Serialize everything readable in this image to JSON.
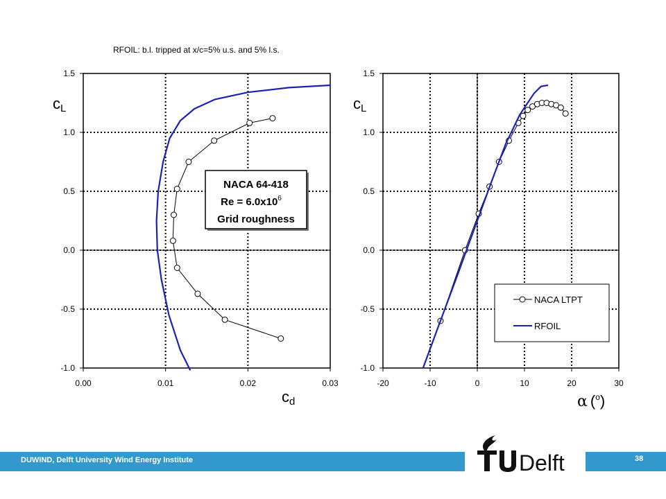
{
  "slide": {
    "header": "RFOIL: b.l. tripped at x/c=5% u.s. and 5% l.s.",
    "footer": "DUWIND, Delft University Wind Energy Institute",
    "page_number": "38",
    "logo_text": "TUDelft",
    "accent_color": "#3399cc",
    "logo_color": "#111111"
  },
  "chart_data": [
    {
      "type": "line",
      "ylabel_main": "c",
      "ylabel_sub": "L",
      "xlabel_main": "c",
      "xlabel_sub": "d",
      "xlim": [
        0.0,
        0.03
      ],
      "ylim": [
        -1.0,
        1.5
      ],
      "xticks": [
        "0.00",
        "0.01",
        "0.02",
        "0.03"
      ],
      "yticks": [
        "-1.0",
        "-0.5",
        "0.0",
        "0.5",
        "1.0",
        "1.5"
      ],
      "xtick_values": [
        0.0,
        0.01,
        0.02,
        0.03
      ],
      "ytick_values": [
        -1.0,
        -0.5,
        0.0,
        0.5,
        1.0,
        1.5
      ],
      "grid": "dotted at major ticks",
      "annotation": {
        "line1": "NACA 64-418",
        "line2": "Re = 6.0x10",
        "line2_sup": "6",
        "line3": "Grid roughness"
      },
      "series": [
        {
          "style": "markers",
          "color": "#000000",
          "points": [
            [
              0.023,
              1.12
            ],
            [
              0.0202,
              1.08
            ],
            [
              0.0159,
              0.93
            ],
            [
              0.0128,
              0.75
            ],
            [
              0.0114,
              0.52
            ],
            [
              0.011,
              0.3
            ],
            [
              0.0109,
              0.08
            ],
            [
              0.0114,
              -0.15
            ],
            [
              0.0139,
              -0.37
            ],
            [
              0.0172,
              -0.59
            ],
            [
              0.024,
              -0.75
            ]
          ]
        },
        {
          "style": "line",
          "color": "#1a22b4",
          "points": [
            [
              0.013,
              -1.02
            ],
            [
              0.0118,
              -0.85
            ],
            [
              0.0104,
              -0.55
            ],
            [
              0.0095,
              -0.25
            ],
            [
              0.009,
              0.0
            ],
            [
              0.0089,
              0.25
            ],
            [
              0.0091,
              0.5
            ],
            [
              0.0097,
              0.75
            ],
            [
              0.0105,
              0.95
            ],
            [
              0.0118,
              1.1
            ],
            [
              0.0135,
              1.2
            ],
            [
              0.016,
              1.28
            ],
            [
              0.02,
              1.34
            ],
            [
              0.025,
              1.38
            ],
            [
              0.03,
              1.4
            ]
          ]
        }
      ]
    },
    {
      "type": "line",
      "ylabel_main": "c",
      "ylabel_sub": "L",
      "xlabel_symbol": "α",
      "xlabel_unit_open": "(",
      "xlabel_unit_deg": "o",
      "xlabel_unit_close": ")",
      "xlim": [
        -20,
        30
      ],
      "ylim": [
        -1.0,
        1.5
      ],
      "xticks": [
        "-20",
        "-10",
        "0",
        "10",
        "20",
        "30"
      ],
      "yticks": [
        "-1.0",
        "-0.5",
        "0.0",
        "0.5",
        "1.0",
        "1.5"
      ],
      "xtick_values": [
        -20,
        -10,
        0,
        10,
        20,
        30
      ],
      "ytick_values": [
        -1.0,
        -0.5,
        0.0,
        0.5,
        1.0,
        1.5
      ],
      "grid": "dotted at major ticks",
      "legend_position": "bottom-right",
      "series": [
        {
          "name": "NACA LTPT",
          "style": "line+markers",
          "color": "#000000",
          "points": [
            [
              -7.8,
              -0.6
            ],
            [
              -2.6,
              0.0
            ],
            [
              0.3,
              0.31
            ],
            [
              2.6,
              0.54
            ],
            [
              4.6,
              0.75
            ],
            [
              6.7,
              0.93
            ],
            [
              8.7,
              1.08
            ],
            [
              9.7,
              1.14
            ],
            [
              10.7,
              1.19
            ],
            [
              11.7,
              1.22
            ],
            [
              12.7,
              1.24
            ],
            [
              13.7,
              1.25
            ],
            [
              14.7,
              1.25
            ],
            [
              15.7,
              1.24
            ],
            [
              16.7,
              1.23
            ],
            [
              17.7,
              1.21
            ],
            [
              18.7,
              1.16
            ]
          ]
        },
        {
          "name": "RFOIL",
          "style": "line",
          "color": "#1a22b4",
          "points": [
            [
              -11.5,
              -1.0
            ],
            [
              -8.0,
              -0.62
            ],
            [
              -4.0,
              -0.19
            ],
            [
              -2.3,
              0.0
            ],
            [
              0.0,
              0.25
            ],
            [
              3.0,
              0.58
            ],
            [
              6.0,
              0.9
            ],
            [
              9.0,
              1.15
            ],
            [
              12.0,
              1.33
            ],
            [
              13.5,
              1.39
            ],
            [
              15.0,
              1.4
            ]
          ]
        }
      ]
    }
  ]
}
